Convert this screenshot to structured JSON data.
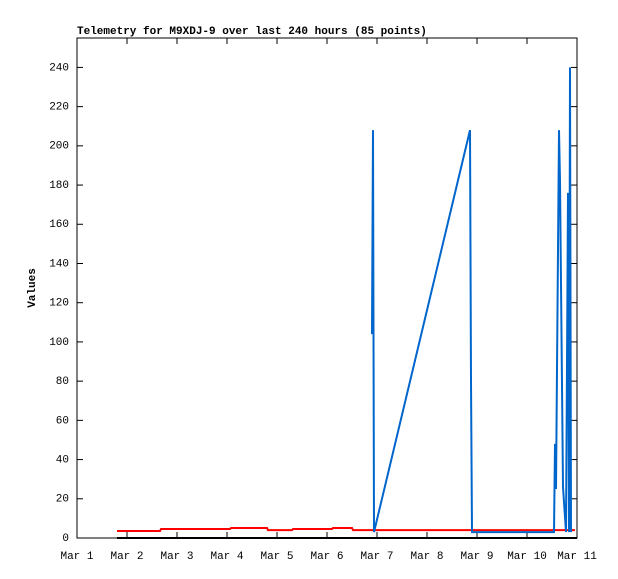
{
  "chart_data": {
    "type": "line",
    "title": "Telemetry for M9XDJ-9 over last 240 hours (85 points)",
    "y_label": "Values",
    "xlim": [
      1,
      11
    ],
    "xticks": [
      {
        "value": 1,
        "label": "Mar 1"
      },
      {
        "value": 2,
        "label": "Mar 2"
      },
      {
        "value": 3,
        "label": "Mar 3"
      },
      {
        "value": 4,
        "label": "Mar 4"
      },
      {
        "value": 5,
        "label": "Mar 5"
      },
      {
        "value": 6,
        "label": "Mar 6"
      },
      {
        "value": 7,
        "label": "Mar 7"
      },
      {
        "value": 8,
        "label": "Mar 8"
      },
      {
        "value": 9,
        "label": "Mar 9"
      },
      {
        "value": 10,
        "label": "Mar 10"
      },
      {
        "value": 11,
        "label": "Mar 11"
      }
    ],
    "ylim": [
      0,
      255
    ],
    "yticks": [
      0,
      20,
      40,
      60,
      80,
      100,
      120,
      140,
      160,
      180,
      200,
      220,
      240
    ],
    "series": [
      {
        "color": "#000000",
        "x": [
          1.8,
          11
        ],
        "values": [
          0,
          0
        ]
      },
      {
        "color": "#ff0000",
        "x": [
          1.8,
          2.66,
          2.68,
          4.06,
          4.08,
          4.8,
          4.82,
          5.3,
          5.32,
          6.1,
          6.12,
          6.5,
          6.52,
          10.96
        ],
        "values": [
          3.6,
          3.6,
          4.6,
          4.6,
          5.1,
          5.1,
          4,
          4,
          4.6,
          4.6,
          5.1,
          5.1,
          4,
          4
        ]
      },
      {
        "color": "#0066cc",
        "x": [
          6.9,
          6.92,
          6.94,
          8.86,
          8.88,
          8.9,
          10.54,
          10.56,
          10.58,
          10.64,
          10.66,
          10.68,
          10.7,
          10.72,
          10.78,
          10.8,
          10.82,
          10.84,
          10.86,
          10.88
        ],
        "values": [
          104,
          208,
          3,
          208,
          80,
          3,
          3,
          48,
          25,
          208,
          182,
          130,
          78,
          26,
          3,
          88,
          176,
          3,
          240,
          3
        ]
      }
    ]
  }
}
